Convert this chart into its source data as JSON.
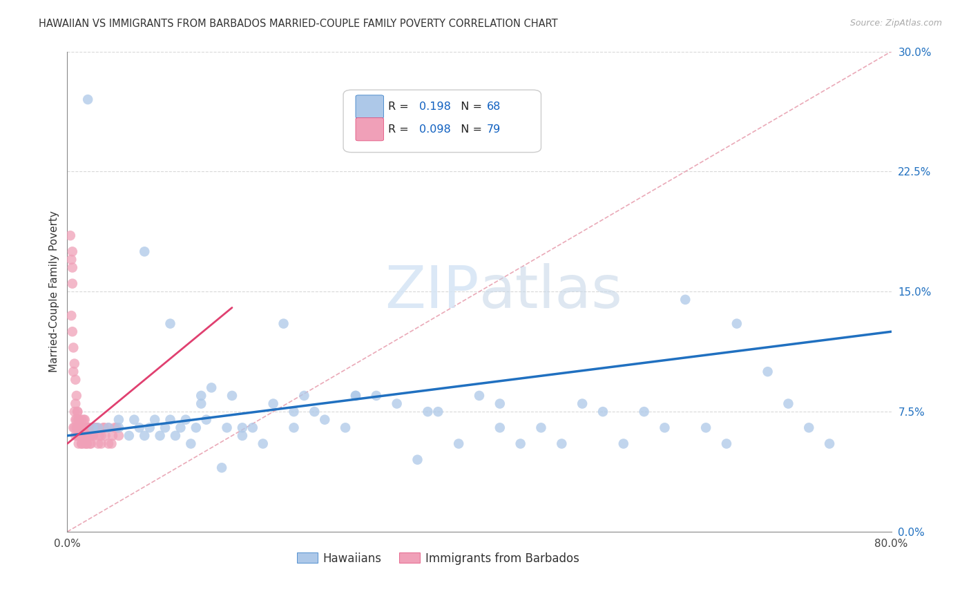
{
  "title": "HAWAIIAN VS IMMIGRANTS FROM BARBADOS MARRIED-COUPLE FAMILY POVERTY CORRELATION CHART",
  "source": "Source: ZipAtlas.com",
  "ylabel": "Married-Couple Family Poverty",
  "xmin": 0.0,
  "xmax": 0.8,
  "ymin": 0.0,
  "ymax": 0.3,
  "ytick_labels_right": [
    "0.0%",
    "7.5%",
    "15.0%",
    "22.5%",
    "30.0%"
  ],
  "yticks_right": [
    0.0,
    0.075,
    0.15,
    0.225,
    0.3
  ],
  "hawaiian_color": "#adc8e8",
  "barbados_color": "#f0a0b8",
  "hawaiian_R": 0.198,
  "hawaiian_N": 68,
  "barbados_R": 0.098,
  "barbados_N": 79,
  "hawaiian_line_color": "#2070c0",
  "barbados_line_color": "#e04070",
  "diagonal_color": "#e8a0b0",
  "grid_color": "#d8d8d8",
  "background_color": "#ffffff",
  "legend_R_N_color": "#1060c0",
  "watermark_color": "#d5e5f5",
  "hawaiian_x": [
    0.02,
    0.025,
    0.03,
    0.04,
    0.05,
    0.05,
    0.06,
    0.065,
    0.07,
    0.075,
    0.08,
    0.085,
    0.09,
    0.095,
    0.1,
    0.105,
    0.11,
    0.115,
    0.12,
    0.125,
    0.13,
    0.135,
    0.14,
    0.15,
    0.155,
    0.16,
    0.17,
    0.18,
    0.19,
    0.2,
    0.21,
    0.22,
    0.23,
    0.24,
    0.25,
    0.27,
    0.28,
    0.3,
    0.32,
    0.34,
    0.36,
    0.38,
    0.4,
    0.42,
    0.44,
    0.46,
    0.48,
    0.5,
    0.52,
    0.54,
    0.56,
    0.58,
    0.6,
    0.62,
    0.64,
    0.65,
    0.68,
    0.7,
    0.72,
    0.74,
    0.075,
    0.1,
    0.13,
    0.17,
    0.22,
    0.28,
    0.35,
    0.42
  ],
  "hawaiian_y": [
    0.27,
    0.065,
    0.065,
    0.065,
    0.07,
    0.065,
    0.06,
    0.07,
    0.065,
    0.06,
    0.065,
    0.07,
    0.06,
    0.065,
    0.07,
    0.06,
    0.065,
    0.07,
    0.055,
    0.065,
    0.085,
    0.07,
    0.09,
    0.04,
    0.065,
    0.085,
    0.06,
    0.065,
    0.055,
    0.08,
    0.13,
    0.065,
    0.085,
    0.075,
    0.07,
    0.065,
    0.085,
    0.085,
    0.08,
    0.045,
    0.075,
    0.055,
    0.085,
    0.08,
    0.055,
    0.065,
    0.055,
    0.08,
    0.075,
    0.055,
    0.075,
    0.065,
    0.145,
    0.065,
    0.055,
    0.13,
    0.1,
    0.08,
    0.065,
    0.055,
    0.175,
    0.13,
    0.08,
    0.065,
    0.075,
    0.085,
    0.075,
    0.065
  ],
  "barbados_x": [
    0.003,
    0.004,
    0.005,
    0.005,
    0.005,
    0.006,
    0.006,
    0.007,
    0.007,
    0.008,
    0.008,
    0.008,
    0.009,
    0.009,
    0.01,
    0.01,
    0.01,
    0.011,
    0.011,
    0.012,
    0.012,
    0.013,
    0.013,
    0.014,
    0.014,
    0.015,
    0.015,
    0.016,
    0.016,
    0.017,
    0.017,
    0.018,
    0.019,
    0.019,
    0.02,
    0.021,
    0.022,
    0.023,
    0.024,
    0.025,
    0.027,
    0.029,
    0.031,
    0.033,
    0.035,
    0.037,
    0.04,
    0.043,
    0.046,
    0.05,
    0.004,
    0.005,
    0.006,
    0.007,
    0.008,
    0.009,
    0.01,
    0.011,
    0.012,
    0.013,
    0.014,
    0.015,
    0.016,
    0.017,
    0.018,
    0.019,
    0.02,
    0.021,
    0.022,
    0.023,
    0.024,
    0.025,
    0.027,
    0.03,
    0.033,
    0.036,
    0.04,
    0.044,
    0.048
  ],
  "barbados_y": [
    0.185,
    0.17,
    0.165,
    0.155,
    0.175,
    0.1,
    0.065,
    0.075,
    0.065,
    0.07,
    0.06,
    0.08,
    0.065,
    0.07,
    0.06,
    0.065,
    0.075,
    0.055,
    0.07,
    0.06,
    0.065,
    0.06,
    0.065,
    0.055,
    0.07,
    0.06,
    0.065,
    0.06,
    0.07,
    0.065,
    0.055,
    0.065,
    0.055,
    0.06,
    0.065,
    0.065,
    0.055,
    0.06,
    0.065,
    0.06,
    0.065,
    0.065,
    0.06,
    0.055,
    0.065,
    0.06,
    0.065,
    0.055,
    0.065,
    0.06,
    0.135,
    0.125,
    0.115,
    0.105,
    0.095,
    0.085,
    0.075,
    0.07,
    0.065,
    0.06,
    0.055,
    0.065,
    0.06,
    0.07,
    0.065,
    0.055,
    0.06,
    0.065,
    0.06,
    0.055,
    0.065,
    0.06,
    0.065,
    0.055,
    0.06,
    0.065,
    0.055,
    0.06,
    0.065
  ],
  "haw_trend_x": [
    0.0,
    0.8
  ],
  "haw_trend_y": [
    0.06,
    0.125
  ],
  "barb_trend_x": [
    0.0,
    0.16
  ],
  "barb_trend_y": [
    0.055,
    0.14
  ]
}
